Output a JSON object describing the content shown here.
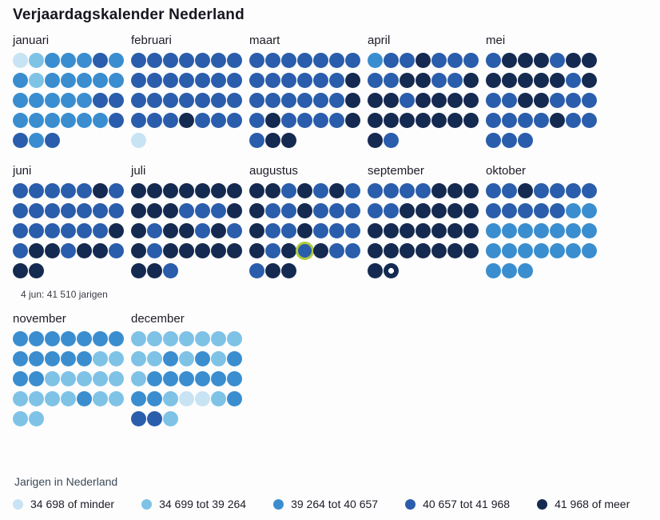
{
  "title": "Verjaardagskalender Nederland",
  "annotation": {
    "text": "4 jun: 41 510 jarigen"
  },
  "palette": {
    "l1": "#c8e3f3",
    "l2": "#7ec3e6",
    "l3": "#3a8ecf",
    "l4": "#2a5dab",
    "l5": "#152a50"
  },
  "highlight": {
    "ring_color": "#b2ca40",
    "dot_color": "#ffffff"
  },
  "legend": {
    "title": "Jarigen in Nederland",
    "items": [
      {
        "label": "34 698 of minder",
        "level": 1,
        "color": "#c8e3f3"
      },
      {
        "label": "34 699 tot 39 264",
        "level": 2,
        "color": "#7ec3e6"
      },
      {
        "label": "39 264 tot 40 657",
        "level": 3,
        "color": "#3a8ecf"
      },
      {
        "label": "40 657 tot 41 968",
        "level": 4,
        "color": "#2a5dab"
      },
      {
        "label": "41 968 of meer",
        "level": 5,
        "color": "#152a50"
      }
    ]
  },
  "chart_data": {
    "type": "heatmap",
    "title": "Verjaardagskalender Nederland",
    "value_meaning": "aantal jarigen per dag, gebond in 5 klassen",
    "level_bins": {
      "1": "34 698 of minder",
      "2": "34 699 tot 39 264",
      "3": "39 264 tot 40 657",
      "4": "40 657 tot 41 968",
      "5": "41 968 of meer"
    },
    "annotated_value": {
      "date": "4 jun",
      "value": "41 510 jarigen"
    },
    "markers": [
      {
        "month": "augustus",
        "day": 25,
        "type": "green-ring"
      },
      {
        "month": "september",
        "day": 30,
        "type": "white-dot"
      }
    ],
    "months": [
      {
        "name": "januari",
        "days": 31,
        "levels": [
          1,
          2,
          3,
          3,
          3,
          4,
          3,
          3,
          2,
          3,
          3,
          3,
          3,
          3,
          3,
          3,
          3,
          3,
          3,
          4,
          4,
          3,
          3,
          3,
          3,
          3,
          3,
          4,
          4,
          3,
          4
        ]
      },
      {
        "name": "februari",
        "days": 29,
        "levels": [
          4,
          4,
          4,
          4,
          4,
          4,
          4,
          4,
          4,
          4,
          4,
          4,
          4,
          4,
          4,
          4,
          4,
          4,
          4,
          4,
          4,
          4,
          4,
          4,
          5,
          4,
          4,
          4,
          1
        ]
      },
      {
        "name": "maart",
        "days": 31,
        "levels": [
          4,
          4,
          4,
          4,
          4,
          4,
          4,
          4,
          4,
          4,
          4,
          4,
          4,
          5,
          4,
          4,
          4,
          4,
          4,
          4,
          5,
          4,
          5,
          4,
          4,
          4,
          4,
          5,
          4,
          5,
          5
        ]
      },
      {
        "name": "april",
        "days": 30,
        "levels": [
          3,
          4,
          4,
          5,
          4,
          4,
          4,
          4,
          4,
          5,
          5,
          4,
          4,
          5,
          5,
          5,
          4,
          5,
          5,
          5,
          5,
          5,
          5,
          5,
          5,
          5,
          5,
          5,
          5,
          4
        ]
      },
      {
        "name": "mei",
        "days": 31,
        "levels": [
          4,
          5,
          5,
          5,
          4,
          5,
          5,
          5,
          5,
          5,
          5,
          5,
          4,
          5,
          4,
          4,
          5,
          5,
          4,
          4,
          4,
          4,
          4,
          4,
          4,
          5,
          4,
          4,
          4,
          4,
          4
        ]
      },
      {
        "name": "juni",
        "days": 30,
        "levels": [
          4,
          4,
          4,
          4,
          4,
          5,
          4,
          4,
          4,
          4,
          4,
          4,
          4,
          4,
          4,
          4,
          4,
          4,
          4,
          4,
          5,
          4,
          5,
          5,
          4,
          5,
          5,
          4,
          5,
          5
        ]
      },
      {
        "name": "juli",
        "days": 31,
        "levels": [
          5,
          5,
          5,
          5,
          5,
          5,
          5,
          5,
          5,
          5,
          4,
          4,
          4,
          5,
          5,
          4,
          5,
          5,
          4,
          5,
          4,
          5,
          4,
          5,
          5,
          5,
          5,
          5,
          5,
          5,
          4
        ]
      },
      {
        "name": "augustus",
        "days": 31,
        "levels": [
          5,
          5,
          4,
          5,
          4,
          5,
          4,
          5,
          4,
          4,
          5,
          4,
          4,
          4,
          5,
          4,
          4,
          5,
          4,
          4,
          4,
          5,
          4,
          5,
          4,
          5,
          4,
          4,
          4,
          5,
          5
        ]
      },
      {
        "name": "september",
        "days": 30,
        "levels": [
          4,
          4,
          4,
          4,
          5,
          5,
          5,
          4,
          4,
          5,
          5,
          5,
          5,
          5,
          5,
          5,
          5,
          5,
          5,
          5,
          5,
          5,
          5,
          5,
          5,
          5,
          5,
          5,
          5,
          5
        ]
      },
      {
        "name": "oktober",
        "days": 31,
        "levels": [
          4,
          4,
          5,
          4,
          4,
          4,
          4,
          4,
          4,
          4,
          4,
          4,
          3,
          3,
          3,
          3,
          3,
          3,
          3,
          3,
          3,
          3,
          3,
          3,
          3,
          3,
          3,
          3,
          3,
          3,
          3
        ]
      },
      {
        "name": "november",
        "days": 30,
        "levels": [
          3,
          3,
          3,
          3,
          3,
          3,
          3,
          3,
          3,
          3,
          3,
          3,
          2,
          2,
          3,
          3,
          2,
          2,
          2,
          2,
          2,
          2,
          2,
          2,
          2,
          3,
          2,
          2,
          2,
          2
        ]
      },
      {
        "name": "december",
        "days": 31,
        "levels": [
          2,
          2,
          2,
          2,
          2,
          2,
          2,
          2,
          2,
          3,
          2,
          3,
          2,
          3,
          2,
          3,
          3,
          3,
          3,
          3,
          3,
          3,
          3,
          2,
          1,
          1,
          2,
          3,
          4,
          4,
          2
        ]
      }
    ]
  }
}
